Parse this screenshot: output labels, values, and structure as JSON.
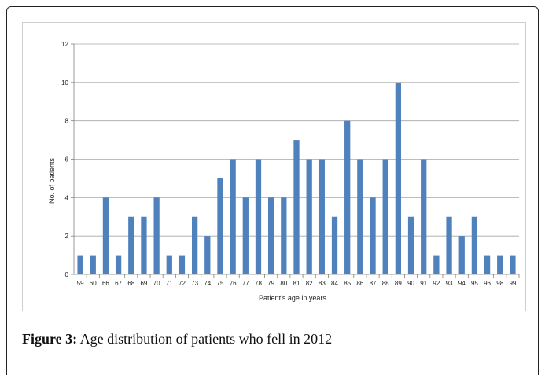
{
  "caption": {
    "label": "Figure 3:",
    "text": " Age distribution of patients who fell in 2012"
  },
  "colors": {
    "bar": "#4f81bd",
    "grid": "#a6a6a6",
    "axis": "#7f7f7f"
  },
  "chart_data": {
    "type": "bar",
    "title": "",
    "xlabel": "Patient’s age in years",
    "ylabel": "No. of patients",
    "ylim": [
      0,
      12
    ],
    "yticks": [
      0,
      2,
      4,
      6,
      8,
      10,
      12
    ],
    "grid": true,
    "legend": "none",
    "categories": [
      "59",
      "60",
      "66",
      "67",
      "68",
      "69",
      "70",
      "71",
      "72",
      "73",
      "74",
      "75",
      "76",
      "77",
      "78",
      "79",
      "80",
      "81",
      "82",
      "83",
      "84",
      "85",
      "86",
      "87",
      "88",
      "89",
      "90",
      "91",
      "92",
      "93",
      "94",
      "95",
      "96",
      "98",
      "99"
    ],
    "values": [
      1,
      1,
      4,
      1,
      3,
      3,
      4,
      1,
      1,
      3,
      2,
      5,
      6,
      4,
      6,
      4,
      4,
      7,
      6,
      6,
      3,
      8,
      6,
      4,
      6,
      10,
      3,
      6,
      1,
      3,
      2,
      3,
      1,
      1,
      1
    ]
  }
}
